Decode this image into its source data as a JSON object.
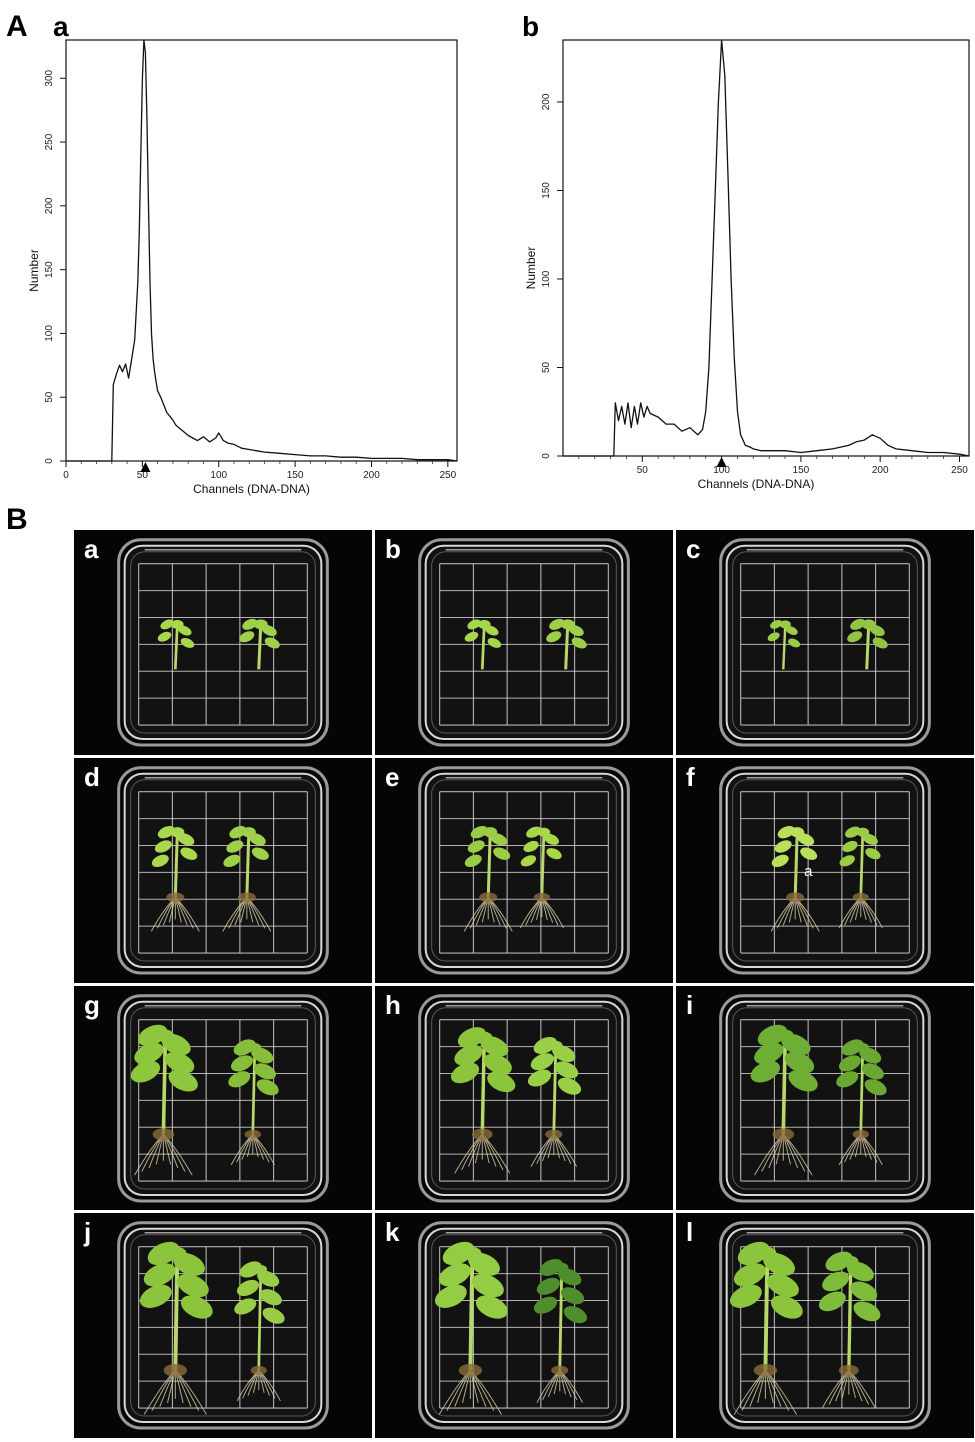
{
  "figure": {
    "panel_A_label": "A",
    "panel_B_label": "B"
  },
  "chart_data": [
    {
      "type": "line",
      "panel": "a",
      "xlabel": "Channels (DNA-DNA)",
      "ylabel": "Number",
      "xlim": [
        0,
        256
      ],
      "ylim": [
        0,
        330
      ],
      "x_ticks": [
        0,
        50,
        100,
        150,
        200,
        250
      ],
      "y_ticks": [
        0,
        50,
        100,
        150,
        200,
        250,
        300
      ],
      "peak_marker_x": 52,
      "grid": false,
      "x": [
        0,
        30,
        31,
        33,
        35,
        37,
        39,
        41,
        43,
        45,
        47,
        48,
        49,
        50,
        51,
        52,
        53,
        54,
        55,
        56,
        57,
        58,
        59,
        60,
        62,
        64,
        66,
        68,
        70,
        72,
        75,
        78,
        80,
        83,
        86,
        90,
        94,
        98,
        100,
        103,
        106,
        110,
        115,
        120,
        125,
        130,
        140,
        150,
        160,
        170,
        180,
        190,
        200,
        210,
        220,
        230,
        240,
        250,
        256
      ],
      "y": [
        0,
        0,
        60,
        68,
        75,
        70,
        76,
        65,
        80,
        95,
        140,
        180,
        240,
        300,
        330,
        320,
        270,
        200,
        140,
        100,
        80,
        70,
        62,
        55,
        50,
        44,
        38,
        35,
        32,
        28,
        25,
        22,
        20,
        18,
        16,
        19,
        15,
        18,
        22,
        16,
        14,
        13,
        10,
        9,
        8,
        7,
        6,
        5,
        4,
        4,
        3,
        3,
        2,
        2,
        2,
        1,
        1,
        1,
        0
      ]
    },
    {
      "type": "line",
      "panel": "b",
      "xlabel": "Channels (DNA-DNA)",
      "ylabel": "Number",
      "xlim": [
        0,
        256
      ],
      "ylim": [
        0,
        235
      ],
      "x_ticks": [
        50,
        100,
        150,
        200,
        250
      ],
      "y_ticks": [
        0,
        50,
        100,
        150,
        200
      ],
      "peak_marker_x": 100,
      "grid": false,
      "x": [
        0,
        32,
        33,
        35,
        37,
        39,
        41,
        43,
        45,
        47,
        49,
        51,
        53,
        55,
        60,
        65,
        70,
        75,
        80,
        85,
        88,
        90,
        92,
        94,
        96,
        98,
        100,
        102,
        104,
        106,
        108,
        110,
        112,
        115,
        118,
        120,
        125,
        130,
        140,
        150,
        160,
        170,
        180,
        185,
        190,
        195,
        200,
        205,
        210,
        220,
        230,
        240,
        250,
        256
      ],
      "y": [
        0,
        0,
        30,
        20,
        28,
        18,
        30,
        16,
        28,
        18,
        30,
        22,
        28,
        24,
        22,
        18,
        18,
        14,
        16,
        12,
        15,
        25,
        50,
        100,
        150,
        200,
        235,
        215,
        160,
        100,
        55,
        25,
        12,
        6,
        5,
        4,
        3,
        3,
        3,
        2,
        3,
        4,
        6,
        8,
        9,
        12,
        10,
        6,
        4,
        3,
        2,
        2,
        1,
        0
      ]
    }
  ],
  "plates": [
    {
      "label": "a",
      "stage": "shoot",
      "plants": [
        {
          "x": 0.34,
          "size": 0.9,
          "leaf": "#a8d84a"
        },
        {
          "x": 0.62,
          "size": 1.0,
          "leaf": "#9fd04a"
        }
      ]
    },
    {
      "label": "b",
      "stage": "shoot",
      "plants": [
        {
          "x": 0.36,
          "size": 0.9,
          "leaf": "#a6d64a"
        },
        {
          "x": 0.64,
          "size": 1.0,
          "leaf": "#9fce48"
        }
      ]
    },
    {
      "label": "c",
      "stage": "shoot",
      "plants": [
        {
          "x": 0.36,
          "size": 0.8,
          "leaf": "#9ccc46"
        },
        {
          "x": 0.64,
          "size": 1.0,
          "leaf": "#94c444"
        }
      ]
    },
    {
      "label": "d",
      "stage": "root",
      "plants": [
        {
          "x": 0.34,
          "size": 1.0,
          "leaf": "#a9d84c"
        },
        {
          "x": 0.58,
          "size": 1.0,
          "leaf": "#9fd04a"
        }
      ]
    },
    {
      "label": "e",
      "stage": "root",
      "plants": [
        {
          "x": 0.38,
          "size": 1.0,
          "leaf": "#9ccc46"
        },
        {
          "x": 0.56,
          "size": 0.9,
          "leaf": "#a8d84a"
        }
      ]
    },
    {
      "label": "f",
      "stage": "root",
      "plants": [
        {
          "x": 0.4,
          "size": 1.0,
          "leaf": "#b8e05a"
        },
        {
          "x": 0.62,
          "size": 0.9,
          "leaf": "#9ccc46"
        }
      ],
      "mark": "a"
    },
    {
      "label": "g",
      "stage": "mature",
      "plants": [
        {
          "x": 0.3,
          "size": 1.2,
          "leaf": "#8ec63e"
        },
        {
          "x": 0.6,
          "size": 0.9,
          "leaf": "#86be3a"
        }
      ]
    },
    {
      "label": "h",
      "stage": "mature",
      "plants": [
        {
          "x": 0.36,
          "size": 1.15,
          "leaf": "#8cc43c"
        },
        {
          "x": 0.6,
          "size": 0.95,
          "leaf": "#9ad048"
        }
      ]
    },
    {
      "label": "i",
      "stage": "mature",
      "plants": [
        {
          "x": 0.36,
          "size": 1.2,
          "leaf": "#6fae34"
        },
        {
          "x": 0.62,
          "size": 0.9,
          "leaf": "#6aa832"
        }
      ]
    },
    {
      "label": "j",
      "stage": "big",
      "plants": [
        {
          "x": 0.34,
          "size": 1.3,
          "leaf": "#8cc43c"
        },
        {
          "x": 0.62,
          "size": 0.9,
          "leaf": "#98cc46"
        }
      ]
    },
    {
      "label": "k",
      "stage": "big",
      "plants": [
        {
          "x": 0.32,
          "size": 1.3,
          "leaf": "#94cc44"
        },
        {
          "x": 0.62,
          "size": 0.95,
          "leaf": "#4f8e2c"
        }
      ]
    },
    {
      "label": "l",
      "stage": "big",
      "plants": [
        {
          "x": 0.3,
          "size": 1.3,
          "leaf": "#8cc43c"
        },
        {
          "x": 0.58,
          "size": 1.1,
          "leaf": "#7fbc3a"
        }
      ]
    }
  ]
}
